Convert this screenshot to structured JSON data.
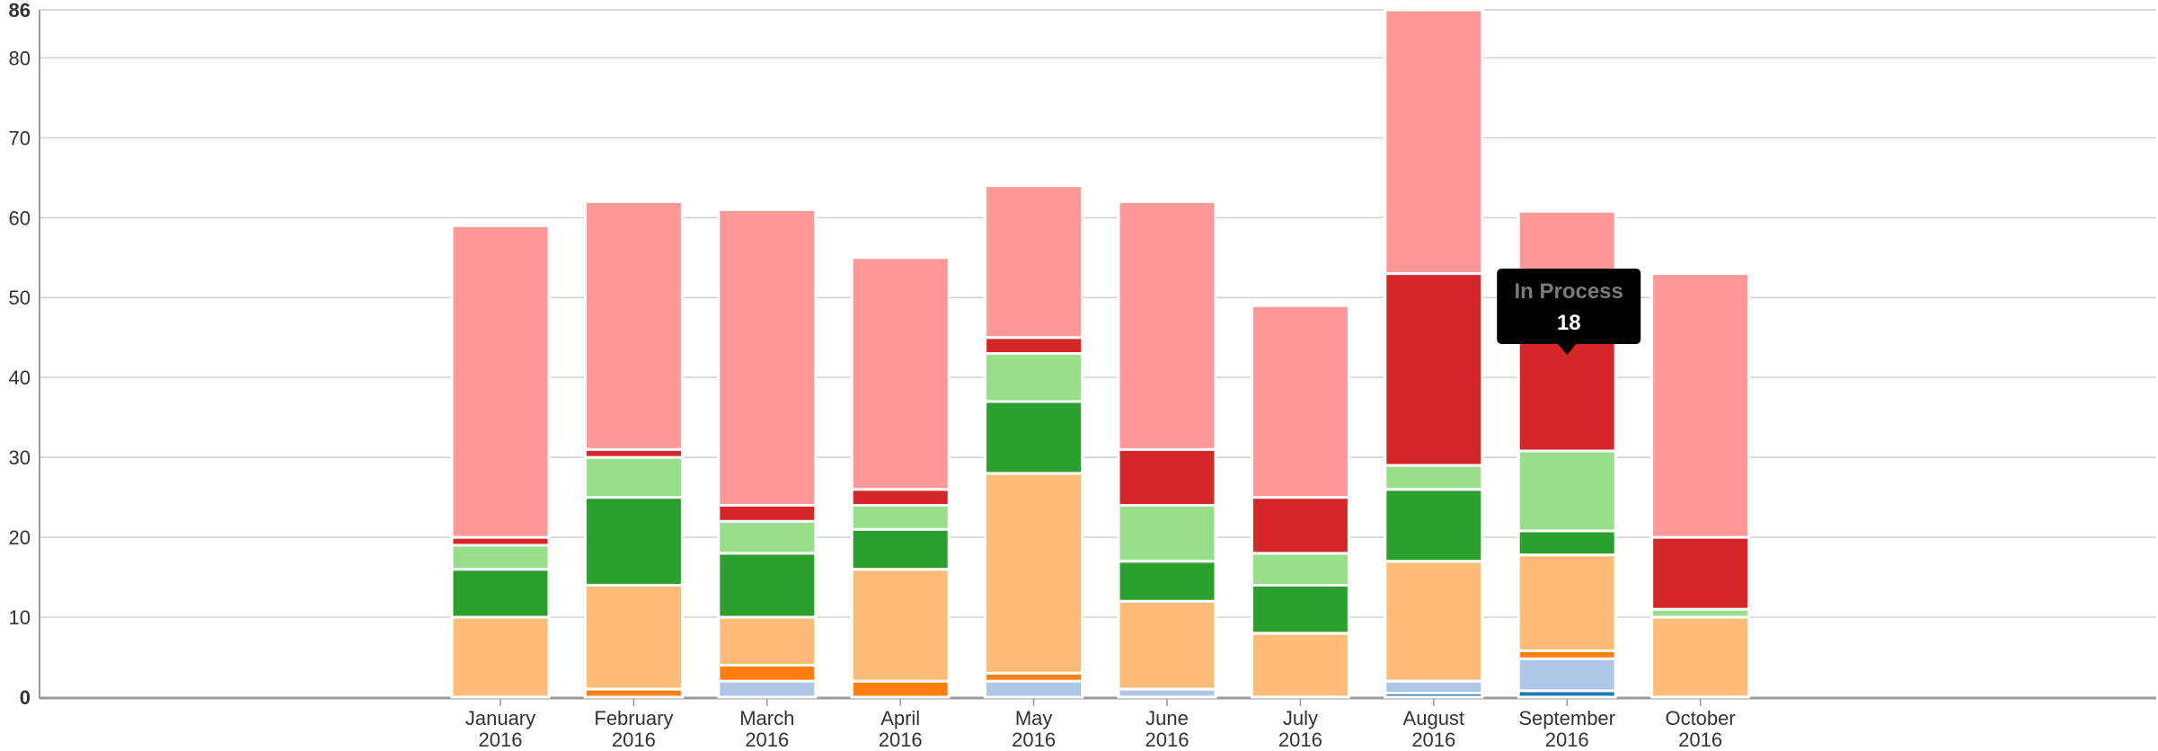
{
  "chart_data": {
    "type": "bar",
    "stacked": true,
    "title": "",
    "xlabel": "",
    "ylabel": "",
    "ylim": [
      0,
      86
    ],
    "y_ticks": [
      0,
      10,
      20,
      30,
      40,
      50,
      60,
      70,
      80,
      86
    ],
    "grid": true,
    "legend": "none",
    "categories": [
      [
        "January",
        "2016"
      ],
      [
        "February",
        "2016"
      ],
      [
        "March",
        "2016"
      ],
      [
        "April",
        "2016"
      ],
      [
        "May",
        "2016"
      ],
      [
        "June",
        "2016"
      ],
      [
        "July",
        "2016"
      ],
      [
        "August",
        "2016"
      ],
      [
        "September",
        "2016"
      ],
      [
        "October",
        "2016"
      ]
    ],
    "series": [
      {
        "color": "#1f77b4",
        "values": [
          0,
          0,
          0,
          0,
          0,
          0,
          0,
          0.5,
          0.8,
          0
        ]
      },
      {
        "color": "#aec7e8",
        "values": [
          0,
          0,
          2,
          0,
          2,
          1,
          0,
          1.5,
          4,
          0
        ]
      },
      {
        "color": "#ff7f0e",
        "values": [
          0,
          1,
          2,
          2,
          1,
          0,
          0,
          0,
          1,
          0
        ]
      },
      {
        "color": "#ffbb78",
        "values": [
          10,
          13,
          6,
          14,
          25,
          11,
          8,
          15,
          12,
          10
        ]
      },
      {
        "color": "#2ca02c",
        "values": [
          6,
          11,
          8,
          5,
          9,
          5,
          6,
          9,
          3,
          0
        ]
      },
      {
        "color": "#98df8a",
        "values": [
          3,
          5,
          4,
          3,
          6,
          7,
          4,
          3,
          10,
          1
        ]
      },
      {
        "name": "In Process",
        "color": "#d62728",
        "values": [
          1,
          1,
          2,
          2,
          2,
          7,
          7,
          24,
          18,
          9
        ]
      },
      {
        "color": "#ff9896",
        "values": [
          39,
          31,
          37,
          29,
          19,
          31,
          24,
          33,
          12,
          33
        ]
      }
    ]
  },
  "tooltip": {
    "title": "In Process",
    "value": "18"
  }
}
